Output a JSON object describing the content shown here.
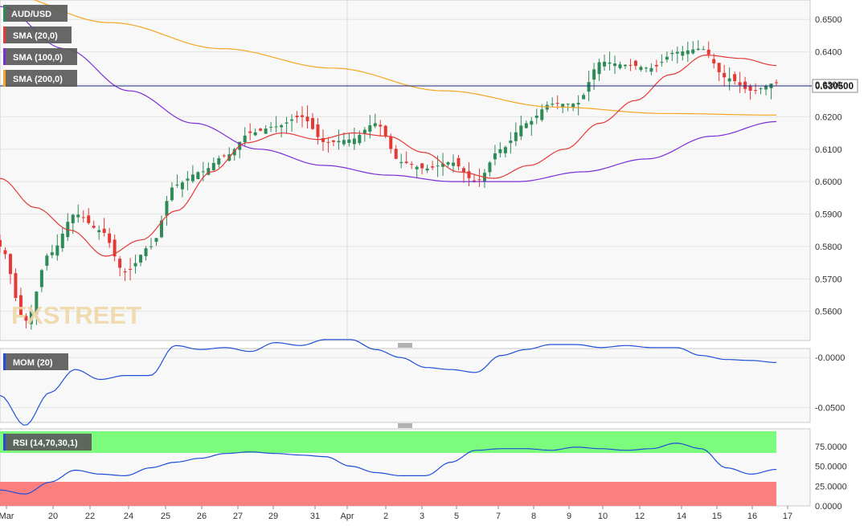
{
  "instrument": "AUD/USD",
  "watermark": "FXSTREET",
  "indicators": {
    "sma20": "SMA (20,0)",
    "sma100": "SMA (100,0)",
    "sma200": "SMA (200,0)",
    "mom": "MOM (20)",
    "rsi": "RSI (14,70,30,1)"
  },
  "current_price": "0.630500",
  "colors": {
    "bull": "#2e8b57",
    "bear": "#e53935",
    "sma20": "#e53935",
    "sma100": "#7b2fd6",
    "sma200": "#f5a623",
    "mom_line": "#1f4fd8",
    "rsi_line": "#1f4fd8",
    "rsi_overbought": "#7cfc7c",
    "rsi_oversold": "#fa8080",
    "price_line": "#1a237e"
  },
  "chart_data": [
    {
      "type": "candlestick",
      "title": "AUD/USD",
      "y_range": [
        0.551,
        0.656
      ],
      "y_ticks": [
        "0.6500",
        "0.6400",
        "0.6300",
        "0.6200",
        "0.6100",
        "0.6000",
        "0.5900",
        "0.5800",
        "0.5700",
        "0.5600"
      ],
      "x_ticks": [
        "Mar",
        "20",
        "22",
        "24",
        "25",
        "26",
        "27",
        "29",
        "31",
        "Apr",
        "2",
        "3",
        "5",
        "7",
        "8",
        "9",
        "10",
        "12",
        "14",
        "15",
        "16",
        "17"
      ],
      "close_anchors": [
        0.58,
        0.557,
        0.578,
        0.59,
        0.585,
        0.572,
        0.58,
        0.599,
        0.603,
        0.608,
        0.615,
        0.617,
        0.62,
        0.612,
        0.613,
        0.618,
        0.606,
        0.604,
        0.606,
        0.6,
        0.61,
        0.618,
        0.624,
        0.624,
        0.637,
        0.636,
        0.635,
        0.64,
        0.641,
        0.632,
        0.628,
        0.6305
      ],
      "sma20_anchors": [
        0.601,
        0.592,
        0.585,
        0.577,
        0.582,
        0.591,
        0.603,
        0.612,
        0.615,
        0.613,
        0.615,
        0.614,
        0.609,
        0.603,
        0.601,
        0.605,
        0.61,
        0.618,
        0.625,
        0.633,
        0.639,
        0.638,
        0.6358
      ],
      "sma100_anchors": [
        0.654,
        0.641,
        0.628,
        0.618,
        0.61,
        0.605,
        0.602,
        0.6,
        0.6,
        0.603,
        0.607,
        0.614,
        0.6185
      ],
      "sma200_anchors": [
        0.658,
        0.649,
        0.641,
        0.635,
        0.628,
        0.623,
        0.621,
        0.6205
      ],
      "series": [
        {
          "name": "SMA (20,0)"
        },
        {
          "name": "SMA (100,0)"
        },
        {
          "name": "SMA (200,0)"
        }
      ]
    },
    {
      "type": "line",
      "title": "MOM (20)",
      "y_range": [
        -0.065,
        0.009
      ],
      "y_ticks": [
        "-0.0000",
        "-0.0500"
      ],
      "anchors": [
        -0.038,
        -0.068,
        -0.035,
        -0.012,
        -0.022,
        -0.018,
        -0.018,
        0.012,
        0.008,
        0.01,
        0.006,
        0.015,
        0.012,
        0.018,
        0.018,
        0.008,
        0,
        -0.01,
        -0.012,
        -0.015,
        0.002,
        0.008,
        0.013,
        0.013,
        0.01,
        0.012,
        0.01,
        0.01,
        0.002,
        -0.002,
        -0.003,
        -0.005
      ]
    },
    {
      "type": "line",
      "title": "RSI (14,70,30,1)",
      "y_range": [
        0,
        97
      ],
      "y_ticks": [
        "75.0000",
        "50.0000",
        "25.0000",
        "0.0000"
      ],
      "overbought": 70,
      "oversold": 30,
      "anchors": [
        20,
        15,
        30,
        45,
        40,
        38,
        48,
        55,
        60,
        66,
        68,
        66,
        64,
        62,
        50,
        42,
        38,
        38,
        55,
        70,
        72,
        72,
        70,
        74,
        72,
        70,
        72,
        79,
        72,
        48,
        40,
        46
      ]
    }
  ]
}
